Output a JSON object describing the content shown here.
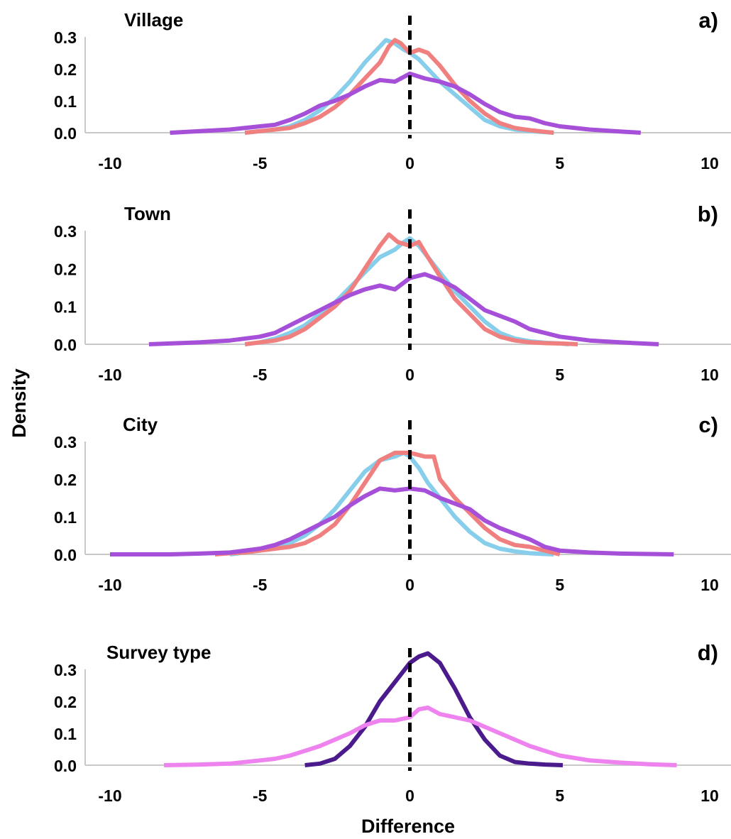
{
  "figure": {
    "ylabel": "Density",
    "xlabel": "Difference"
  },
  "chart_data": [
    {
      "type": "line",
      "panel_label": "a)",
      "title": "Village",
      "xlim": [
        -10,
        10
      ],
      "ylim": [
        0,
        0.3
      ],
      "xticks": [
        "-10",
        "-5",
        "0",
        "5",
        "10"
      ],
      "yticks": [
        "0.0",
        "0.1",
        "0.2",
        "0.3"
      ],
      "reference_line_x": 0,
      "series": [
        {
          "color": "#87ceeb",
          "x": [
            -5.5,
            -5,
            -4.5,
            -4,
            -3.5,
            -3,
            -2.5,
            -2,
            -1.5,
            -1,
            -0.8,
            -0.5,
            -0.2,
            0,
            0.3,
            0.6,
            1,
            1.5,
            2,
            2.5,
            3,
            3.5,
            4,
            4.5,
            4.8
          ],
          "y": [
            0,
            0.005,
            0.01,
            0.02,
            0.04,
            0.07,
            0.11,
            0.16,
            0.22,
            0.27,
            0.29,
            0.28,
            0.26,
            0.25,
            0.23,
            0.2,
            0.16,
            0.12,
            0.08,
            0.04,
            0.02,
            0.01,
            0.005,
            0.002,
            0
          ]
        },
        {
          "color": "#f08080",
          "x": [
            -5.5,
            -5,
            -4.5,
            -4,
            -3.5,
            -3,
            -2.5,
            -2,
            -1.5,
            -1,
            -0.7,
            -0.5,
            -0.3,
            0,
            0.3,
            0.6,
            1,
            1.5,
            2,
            2.5,
            3,
            3.5,
            4,
            4.5,
            4.8
          ],
          "y": [
            0,
            0.005,
            0.01,
            0.015,
            0.03,
            0.05,
            0.08,
            0.12,
            0.17,
            0.22,
            0.27,
            0.29,
            0.28,
            0.25,
            0.26,
            0.25,
            0.21,
            0.15,
            0.1,
            0.06,
            0.03,
            0.015,
            0.008,
            0.003,
            0
          ]
        },
        {
          "color": "#a64fd8",
          "x": [
            -8,
            -7,
            -6,
            -5,
            -4.5,
            -4,
            -3.5,
            -3,
            -2.5,
            -2,
            -1.5,
            -1,
            -0.5,
            0,
            0.5,
            1,
            1.5,
            2,
            2.5,
            3,
            3.5,
            4,
            4.5,
            5,
            6,
            7,
            7.7
          ],
          "y": [
            0,
            0.005,
            0.01,
            0.02,
            0.025,
            0.04,
            0.06,
            0.085,
            0.1,
            0.12,
            0.145,
            0.165,
            0.16,
            0.185,
            0.17,
            0.16,
            0.145,
            0.12,
            0.09,
            0.065,
            0.05,
            0.045,
            0.03,
            0.02,
            0.01,
            0.004,
            0
          ]
        }
      ]
    },
    {
      "type": "line",
      "panel_label": "b)",
      "title": "Town",
      "xlim": [
        -10,
        10
      ],
      "ylim": [
        0,
        0.3
      ],
      "xticks": [
        "-10",
        "-5",
        "0",
        "5",
        "10"
      ],
      "yticks": [
        "0.0",
        "0.1",
        "0.2",
        "0.3"
      ],
      "reference_line_x": 0,
      "series": [
        {
          "color": "#87ceeb",
          "x": [
            -5.5,
            -5,
            -4.5,
            -4,
            -3.5,
            -3,
            -2.5,
            -2,
            -1.5,
            -1,
            -0.5,
            -0.2,
            0,
            0.3,
            0.6,
            1,
            1.5,
            2,
            2.5,
            3,
            3.5,
            4,
            4.5,
            5,
            5.3
          ],
          "y": [
            0,
            0.005,
            0.015,
            0.03,
            0.05,
            0.08,
            0.11,
            0.15,
            0.19,
            0.23,
            0.25,
            0.27,
            0.28,
            0.26,
            0.23,
            0.19,
            0.14,
            0.1,
            0.06,
            0.03,
            0.015,
            0.008,
            0.004,
            0.002,
            0
          ]
        },
        {
          "color": "#f08080",
          "x": [
            -5.5,
            -5,
            -4.5,
            -4,
            -3.5,
            -3,
            -2.5,
            -2,
            -1.5,
            -1,
            -0.7,
            -0.4,
            0,
            0.3,
            0.6,
            1,
            1.5,
            2,
            2.5,
            3,
            3.5,
            4,
            4.5,
            5,
            5.6
          ],
          "y": [
            0,
            0.005,
            0.01,
            0.02,
            0.04,
            0.07,
            0.1,
            0.14,
            0.2,
            0.26,
            0.29,
            0.27,
            0.26,
            0.27,
            0.23,
            0.18,
            0.12,
            0.08,
            0.04,
            0.02,
            0.01,
            0.005,
            0.003,
            0.002,
            0
          ]
        },
        {
          "color": "#a64fd8",
          "x": [
            -8.7,
            -8,
            -7,
            -6,
            -5,
            -4.5,
            -4,
            -3.5,
            -3,
            -2.5,
            -2,
            -1.5,
            -1,
            -0.5,
            0,
            0.5,
            1,
            1.5,
            2,
            2.5,
            3,
            3.5,
            4,
            4.5,
            5,
            6,
            7,
            8.3
          ],
          "y": [
            0,
            0.002,
            0.005,
            0.01,
            0.02,
            0.03,
            0.05,
            0.07,
            0.09,
            0.11,
            0.13,
            0.145,
            0.155,
            0.145,
            0.175,
            0.185,
            0.17,
            0.15,
            0.12,
            0.09,
            0.075,
            0.06,
            0.04,
            0.03,
            0.02,
            0.01,
            0.005,
            0
          ]
        }
      ]
    },
    {
      "type": "line",
      "panel_label": "c)",
      "title": "City",
      "xlim": [
        -10,
        10
      ],
      "ylim": [
        0,
        0.3
      ],
      "xticks": [
        "-10",
        "-5",
        "0",
        "5",
        "10"
      ],
      "yticks": [
        "0.0",
        "0.1",
        "0.2",
        "0.3"
      ],
      "reference_line_x": 0,
      "series": [
        {
          "color": "#87ceeb",
          "x": [
            -6,
            -5.5,
            -5,
            -4.5,
            -4,
            -3.5,
            -3,
            -2.5,
            -2,
            -1.5,
            -1,
            -0.5,
            -0.2,
            0,
            0.3,
            0.6,
            1,
            1.5,
            2,
            2.5,
            3,
            3.5,
            4,
            4.5,
            4.8
          ],
          "y": [
            0,
            0.005,
            0.01,
            0.02,
            0.03,
            0.05,
            0.08,
            0.12,
            0.17,
            0.22,
            0.25,
            0.26,
            0.27,
            0.26,
            0.23,
            0.19,
            0.15,
            0.1,
            0.06,
            0.03,
            0.015,
            0.008,
            0.003,
            0.001,
            0
          ]
        },
        {
          "color": "#f08080",
          "x": [
            -6.5,
            -6,
            -5.5,
            -5,
            -4.5,
            -4,
            -3.5,
            -3,
            -2.5,
            -2,
            -1.5,
            -1,
            -0.5,
            0,
            0.5,
            0.8,
            1,
            1.5,
            2,
            2.5,
            3,
            3.5,
            4,
            4.5,
            5
          ],
          "y": [
            0,
            0.003,
            0.005,
            0.01,
            0.015,
            0.02,
            0.03,
            0.05,
            0.08,
            0.13,
            0.19,
            0.25,
            0.27,
            0.27,
            0.26,
            0.26,
            0.2,
            0.15,
            0.11,
            0.07,
            0.04,
            0.025,
            0.02,
            0.01,
            0
          ]
        },
        {
          "color": "#a64fd8",
          "x": [
            -10,
            -9,
            -8,
            -7,
            -6,
            -5,
            -4.5,
            -4,
            -3.5,
            -3,
            -2.5,
            -2,
            -1.5,
            -1,
            -0.5,
            0,
            0.5,
            1,
            1.5,
            2,
            2.5,
            3,
            3.5,
            4,
            4.5,
            5,
            6,
            7,
            8,
            8.8
          ],
          "y": [
            0,
            0,
            0,
            0.002,
            0.005,
            0.015,
            0.025,
            0.04,
            0.06,
            0.08,
            0.1,
            0.13,
            0.155,
            0.175,
            0.17,
            0.175,
            0.17,
            0.15,
            0.135,
            0.12,
            0.09,
            0.07,
            0.055,
            0.04,
            0.02,
            0.01,
            0.005,
            0.002,
            0.001,
            0
          ]
        }
      ]
    },
    {
      "type": "line",
      "panel_label": "d)",
      "title": "Survey type",
      "xlim": [
        -10,
        10
      ],
      "ylim": [
        0,
        0.3
      ],
      "xticks": [
        "-10",
        "-5",
        "0",
        "5",
        "10"
      ],
      "yticks": [
        "0.0",
        "0.1",
        "0.2",
        "0.3"
      ],
      "reference_line_x": 0,
      "series": [
        {
          "color": "#4b1a8c",
          "x": [
            -3.5,
            -3,
            -2.5,
            -2,
            -1.5,
            -1,
            -0.5,
            0,
            0.3,
            0.6,
            1,
            1.5,
            2,
            2.5,
            3,
            3.5,
            4,
            4.5,
            5.1
          ],
          "y": [
            0,
            0.005,
            0.02,
            0.06,
            0.12,
            0.2,
            0.26,
            0.32,
            0.34,
            0.35,
            0.32,
            0.24,
            0.15,
            0.08,
            0.03,
            0.01,
            0.005,
            0.002,
            0
          ]
        },
        {
          "color": "#ee82ee",
          "x": [
            -8.2,
            -7,
            -6,
            -5,
            -4.5,
            -4,
            -3.5,
            -3,
            -2.5,
            -2,
            -1.5,
            -1,
            -0.5,
            0,
            0.3,
            0.6,
            1,
            1.5,
            2,
            2.5,
            3,
            3.5,
            4,
            4.5,
            5,
            6,
            7,
            8,
            8.9
          ],
          "y": [
            0,
            0.002,
            0.005,
            0.015,
            0.02,
            0.03,
            0.045,
            0.06,
            0.08,
            0.1,
            0.125,
            0.14,
            0.14,
            0.15,
            0.175,
            0.18,
            0.16,
            0.15,
            0.14,
            0.12,
            0.1,
            0.08,
            0.06,
            0.045,
            0.03,
            0.015,
            0.008,
            0.003,
            0
          ]
        }
      ]
    }
  ]
}
